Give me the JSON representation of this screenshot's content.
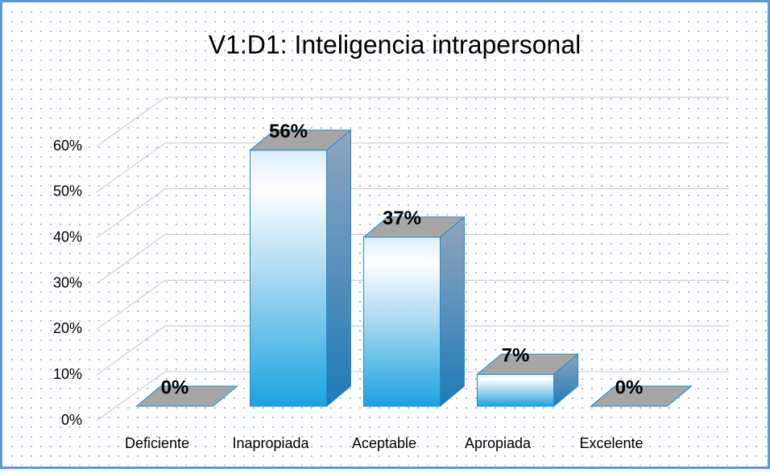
{
  "chart_data": {
    "type": "bar3d",
    "title": "V1:D1: Inteligencia intrapersonal",
    "categories": [
      "Deficiente",
      "Inapropiada",
      "Aceptable",
      "Apropiada",
      "Excelente"
    ],
    "values": [
      0,
      56,
      37,
      7,
      0
    ],
    "value_labels": [
      "0%",
      "56%",
      "37%",
      "7%",
      "0%"
    ],
    "ylim": [
      0,
      60
    ],
    "yticks": [
      {
        "value": 0,
        "label": "0%"
      },
      {
        "value": 10,
        "label": "10%"
      },
      {
        "value": 20,
        "label": "20%"
      },
      {
        "value": 30,
        "label": "30%"
      },
      {
        "value": 40,
        "label": "40%"
      },
      {
        "value": 50,
        "label": "50%"
      },
      {
        "value": 60,
        "label": "60%"
      }
    ],
    "grid": true,
    "color": "#1ea6e0"
  }
}
